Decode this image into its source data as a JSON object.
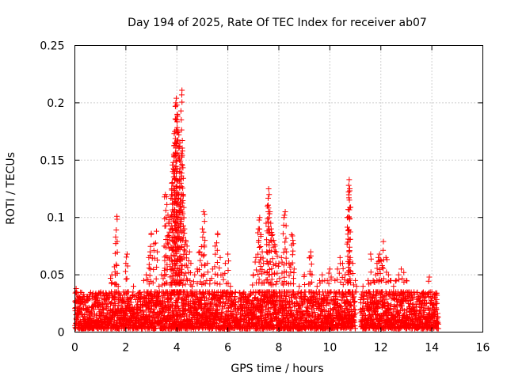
{
  "chart_data": {
    "type": "scatter",
    "title": "Day 194 of 2025, Rate Of TEC Index for receiver ab07",
    "xlabel": "GPS time / hours",
    "ylabel": "ROTI / TECUs",
    "xlim": [
      0,
      16
    ],
    "ylim": [
      0,
      0.25
    ],
    "xticks": [
      0,
      2,
      4,
      6,
      8,
      10,
      12,
      14,
      16
    ],
    "xtick_labels": [
      "0",
      "2",
      "4",
      "6",
      "8",
      "10",
      "12",
      "14",
      "16"
    ],
    "yticks": [
      0,
      0.05,
      0.1,
      0.15,
      0.2,
      0.25
    ],
    "ytick_labels": [
      "0",
      "0.05",
      "0.1",
      "0.15",
      "0.2",
      "0.25"
    ],
    "grid": true,
    "marker": "+",
    "color": "#ff0000",
    "series": [
      {
        "name": "ROTI",
        "points": [
          [
            0.05,
            0.038
          ],
          [
            0.1,
            0.03
          ],
          [
            0.2,
            0.025
          ],
          [
            0.3,
            0.027
          ],
          [
            0.5,
            0.02
          ],
          [
            0.6,
            0.012
          ],
          [
            0.8,
            0.022
          ],
          [
            1.0,
            0.02
          ],
          [
            1.1,
            0.025
          ],
          [
            1.3,
            0.03
          ],
          [
            1.4,
            0.047
          ],
          [
            1.45,
            0.05
          ],
          [
            1.5,
            0.03
          ],
          [
            1.55,
            0.057
          ],
          [
            1.6,
            0.083
          ],
          [
            1.65,
            0.101
          ],
          [
            1.7,
            0.04
          ],
          [
            1.8,
            0.03
          ],
          [
            1.9,
            0.035
          ],
          [
            2.0,
            0.06
          ],
          [
            2.05,
            0.068
          ],
          [
            2.1,
            0.035
          ],
          [
            2.3,
            0.04
          ],
          [
            2.5,
            0.03
          ],
          [
            2.7,
            0.045
          ],
          [
            2.8,
            0.05
          ],
          [
            2.9,
            0.065
          ],
          [
            2.95,
            0.07
          ],
          [
            3.0,
            0.086
          ],
          [
            3.1,
            0.077
          ],
          [
            3.2,
            0.088
          ],
          [
            3.3,
            0.04
          ],
          [
            3.4,
            0.05
          ],
          [
            3.5,
            0.075
          ],
          [
            3.55,
            0.12
          ],
          [
            3.6,
            0.118
          ],
          [
            3.65,
            0.102
          ],
          [
            3.7,
            0.098
          ],
          [
            3.75,
            0.09
          ],
          [
            3.8,
            0.125
          ],
          [
            3.82,
            0.13
          ],
          [
            3.84,
            0.14
          ],
          [
            3.86,
            0.148
          ],
          [
            3.88,
            0.155
          ],
          [
            3.9,
            0.163
          ],
          [
            3.92,
            0.175
          ],
          [
            3.94,
            0.186
          ],
          [
            3.96,
            0.2
          ],
          [
            3.98,
            0.204
          ],
          [
            4.0,
            0.198
          ],
          [
            4.02,
            0.19
          ],
          [
            4.05,
            0.175
          ],
          [
            4.08,
            0.162
          ],
          [
            4.1,
            0.15
          ],
          [
            4.12,
            0.165
          ],
          [
            4.15,
            0.11
          ],
          [
            4.18,
            0.156
          ],
          [
            4.2,
            0.211
          ],
          [
            4.22,
            0.158
          ],
          [
            4.25,
            0.12
          ],
          [
            4.3,
            0.09
          ],
          [
            4.35,
            0.08
          ],
          [
            4.4,
            0.075
          ],
          [
            4.5,
            0.07
          ],
          [
            4.55,
            0.06
          ],
          [
            4.6,
            0.04
          ],
          [
            4.7,
            0.05
          ],
          [
            4.8,
            0.055
          ],
          [
            4.9,
            0.07
          ],
          [
            5.0,
            0.09
          ],
          [
            5.05,
            0.105
          ],
          [
            5.1,
            0.08
          ],
          [
            5.2,
            0.06
          ],
          [
            5.3,
            0.045
          ],
          [
            5.4,
            0.055
          ],
          [
            5.5,
            0.075
          ],
          [
            5.6,
            0.086
          ],
          [
            5.7,
            0.065
          ],
          [
            5.8,
            0.05
          ],
          [
            5.9,
            0.06
          ],
          [
            6.0,
            0.068
          ],
          [
            6.1,
            0.04
          ],
          [
            6.3,
            0.035
          ],
          [
            6.5,
            0.03
          ],
          [
            6.7,
            0.03
          ],
          [
            6.9,
            0.035
          ],
          [
            7.0,
            0.05
          ],
          [
            7.1,
            0.065
          ],
          [
            7.2,
            0.09
          ],
          [
            7.25,
            0.1
          ],
          [
            7.3,
            0.085
          ],
          [
            7.35,
            0.07
          ],
          [
            7.4,
            0.06
          ],
          [
            7.5,
            0.095
          ],
          [
            7.55,
            0.11
          ],
          [
            7.6,
            0.125
          ],
          [
            7.62,
            0.12
          ],
          [
            7.65,
            0.105
          ],
          [
            7.7,
            0.09
          ],
          [
            7.75,
            0.085
          ],
          [
            7.8,
            0.08
          ],
          [
            7.85,
            0.075
          ],
          [
            7.9,
            0.07
          ],
          [
            8.0,
            0.06
          ],
          [
            8.1,
            0.065
          ],
          [
            8.2,
            0.1
          ],
          [
            8.25,
            0.105
          ],
          [
            8.3,
            0.07
          ],
          [
            8.4,
            0.06
          ],
          [
            8.5,
            0.085
          ],
          [
            8.55,
            0.08
          ],
          [
            8.6,
            0.055
          ],
          [
            8.8,
            0.04
          ],
          [
            9.0,
            0.05
          ],
          [
            9.2,
            0.065
          ],
          [
            9.25,
            0.07
          ],
          [
            9.3,
            0.05
          ],
          [
            9.5,
            0.04
          ],
          [
            9.6,
            0.045
          ],
          [
            9.7,
            0.05
          ],
          [
            9.8,
            0.045
          ],
          [
            9.9,
            0.045
          ],
          [
            10.0,
            0.055
          ],
          [
            10.05,
            0.048
          ],
          [
            10.2,
            0.045
          ],
          [
            10.3,
            0.055
          ],
          [
            10.4,
            0.065
          ],
          [
            10.5,
            0.06
          ],
          [
            10.6,
            0.05
          ],
          [
            10.7,
            0.1
          ],
          [
            10.72,
            0.107
          ],
          [
            10.74,
            0.128
          ],
          [
            10.76,
            0.133
          ],
          [
            10.78,
            0.125
          ],
          [
            10.8,
            0.065
          ],
          [
            10.9,
            0.06
          ],
          [
            11.0,
            0.045
          ],
          [
            11.05,
            0.04
          ],
          [
            11.3,
            0.04
          ],
          [
            11.5,
            0.045
          ],
          [
            11.6,
            0.068
          ],
          [
            11.7,
            0.045
          ],
          [
            11.8,
            0.05
          ],
          [
            11.85,
            0.06
          ],
          [
            11.9,
            0.065
          ],
          [
            11.95,
            0.068
          ],
          [
            12.0,
            0.063
          ],
          [
            12.05,
            0.058
          ],
          [
            12.1,
            0.079
          ],
          [
            12.2,
            0.065
          ],
          [
            12.3,
            0.05
          ],
          [
            12.4,
            0.045
          ],
          [
            12.5,
            0.04
          ],
          [
            12.6,
            0.045
          ],
          [
            12.7,
            0.05
          ],
          [
            12.8,
            0.055
          ],
          [
            12.9,
            0.052
          ],
          [
            13.0,
            0.045
          ],
          [
            13.1,
            0.035
          ],
          [
            13.3,
            0.035
          ],
          [
            13.5,
            0.03
          ],
          [
            13.7,
            0.03
          ],
          [
            13.9,
            0.048
          ],
          [
            14.0,
            0.035
          ],
          [
            14.1,
            0.03
          ],
          [
            14.2,
            0.025
          ]
        ],
        "band": {
          "description": "dense low-level scatter",
          "segments": [
            [
              0.0,
              11.0
            ],
            [
              11.2,
              14.25
            ]
          ],
          "range": [
            0.003,
            0.035
          ]
        }
      }
    ]
  }
}
